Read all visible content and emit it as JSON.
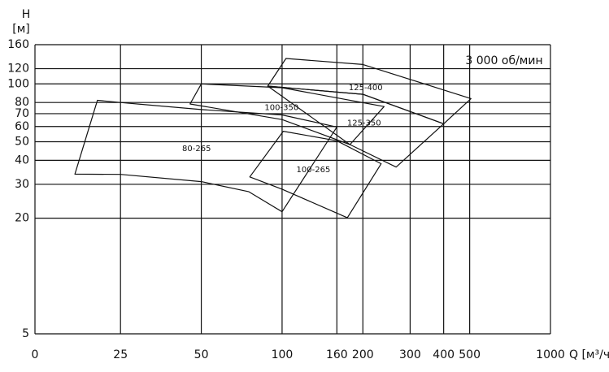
{
  "chart_data": {
    "type": "area",
    "y_label_symbol": "H",
    "y_label_unit": "[м]",
    "x_label": "Q [м³/ч]",
    "x_origin_label": "0",
    "annotation": "3 000 об/мин",
    "x_log": true,
    "y_log": true,
    "grid": true,
    "color": "#111111",
    "xlim": [
      12,
      1000
    ],
    "ylim": [
      5,
      160
    ],
    "xticks": [
      25,
      50,
      100,
      160,
      200,
      300,
      400,
      500,
      1000
    ],
    "yticks": [
      5,
      20,
      30,
      40,
      50,
      60,
      70,
      80,
      100,
      120,
      160
    ],
    "series": [
      {
        "name": "80-265",
        "x": [
          16.9,
          25,
          50,
          75,
          100,
          160,
          100,
          50,
          25,
          20.5
        ],
        "y": [
          33.9,
          33.8,
          31,
          27.5,
          21.6,
          59.6,
          68.9,
          73.5,
          80,
          82.1
        ]
      },
      {
        "name": "100-265",
        "x": [
          75.8,
          100,
          175,
          234,
          160,
          101
        ],
        "y": [
          32.8,
          28.3,
          20.1,
          38.4,
          50.6,
          56.7
        ]
      },
      {
        "name": "100-350",
        "x": [
          45.4,
          50,
          100,
          240,
          179,
          100
        ],
        "y": [
          78.6,
          100,
          95.5,
          76.2,
          48.3,
          65.2
        ]
      },
      {
        "name": "125-350",
        "x": [
          179,
          88.4,
          200,
          400,
          266
        ],
        "y": [
          48.3,
          97.4,
          88.3,
          62.0,
          36.9
        ]
      },
      {
        "name": "125-400",
        "x": [
          88.4,
          103.4,
          200,
          506,
          400,
          200
        ],
        "y": [
          97.4,
          135.6,
          126.2,
          83.8,
          62.0,
          88.3
        ]
      }
    ]
  }
}
